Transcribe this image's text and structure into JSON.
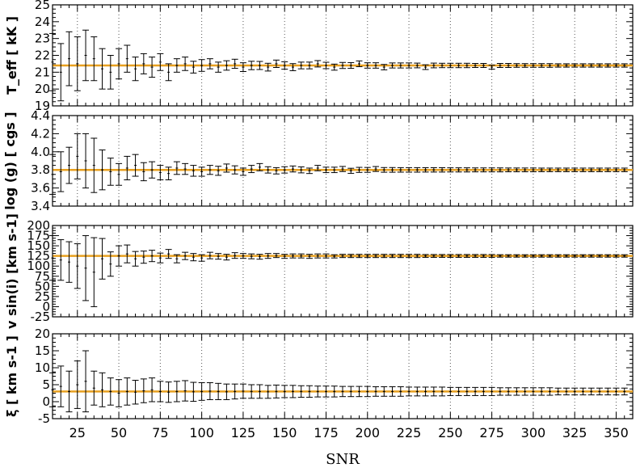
{
  "chart_data": {
    "type": "scatter",
    "xlabel": "SNR",
    "x_ticks": [
      25,
      50,
      75,
      100,
      125,
      150,
      175,
      200,
      225,
      250,
      275,
      300,
      325,
      350
    ],
    "xlim": [
      10,
      360
    ],
    "grid": "vertical dotted at major x ticks",
    "snr_points": [
      10,
      15,
      20,
      25,
      30,
      35,
      40,
      45,
      50,
      55,
      60,
      65,
      70,
      75,
      80,
      85,
      90,
      95,
      100,
      105,
      110,
      115,
      120,
      125,
      130,
      135,
      140,
      145,
      150,
      155,
      160,
      165,
      170,
      175,
      180,
      185,
      190,
      195,
      200,
      205,
      210,
      215,
      220,
      225,
      230,
      235,
      240,
      245,
      250,
      255,
      260,
      265,
      270,
      275,
      280,
      285,
      290,
      295,
      300,
      305,
      310,
      315,
      320,
      325,
      330,
      335,
      340,
      345,
      350,
      355
    ],
    "panels": [
      {
        "ylabel": "T_eff [ kK ]",
        "ylim": [
          19,
          25
        ],
        "y_ticks": [
          19,
          20,
          21,
          22,
          23,
          24,
          25
        ],
        "true_value": 21.4,
        "values": [
          21.6,
          21.0,
          21.8,
          21.5,
          22.0,
          21.8,
          21.2,
          21.0,
          21.5,
          21.8,
          21.2,
          21.5,
          21.3,
          21.6,
          21.0,
          21.4,
          21.5,
          21.3,
          21.4,
          21.5,
          21.3,
          21.4,
          21.5,
          21.3,
          21.4,
          21.4,
          21.3,
          21.5,
          21.4,
          21.3,
          21.4,
          21.4,
          21.5,
          21.4,
          21.3,
          21.4,
          21.4,
          21.5,
          21.4,
          21.4,
          21.3,
          21.4,
          21.4,
          21.4,
          21.4,
          21.3,
          21.4,
          21.4,
          21.4,
          21.4,
          21.4,
          21.4,
          21.4,
          21.3,
          21.4,
          21.4,
          21.4,
          21.4,
          21.4,
          21.4,
          21.4,
          21.4,
          21.4,
          21.4,
          21.4,
          21.4,
          21.4,
          21.4,
          21.4,
          21.4
        ],
        "errors": [
          1.7,
          1.7,
          1.6,
          1.6,
          1.5,
          1.3,
          1.2,
          1.0,
          0.9,
          0.8,
          0.7,
          0.6,
          0.6,
          0.5,
          0.5,
          0.4,
          0.4,
          0.35,
          0.35,
          0.3,
          0.3,
          0.28,
          0.27,
          0.26,
          0.25,
          0.24,
          0.23,
          0.22,
          0.22,
          0.21,
          0.2,
          0.2,
          0.19,
          0.19,
          0.18,
          0.18,
          0.17,
          0.17,
          0.16,
          0.16,
          0.16,
          0.15,
          0.15,
          0.15,
          0.14,
          0.14,
          0.14,
          0.13,
          0.13,
          0.13,
          0.13,
          0.12,
          0.12,
          0.12,
          0.12,
          0.12,
          0.11,
          0.11,
          0.11,
          0.11,
          0.11,
          0.1,
          0.1,
          0.1,
          0.1,
          0.1,
          0.1,
          0.1,
          0.1,
          0.1
        ]
      },
      {
        "ylabel": "log (g) [ cgs ]",
        "ylim": [
          3.4,
          4.4
        ],
        "y_ticks": [
          3.4,
          3.6,
          3.8,
          4.0,
          4.2,
          4.4
        ],
        "true_value": 3.8,
        "values": [
          3.75,
          3.78,
          3.85,
          3.95,
          3.9,
          3.85,
          3.8,
          3.78,
          3.75,
          3.82,
          3.85,
          3.78,
          3.8,
          3.77,
          3.76,
          3.82,
          3.81,
          3.79,
          3.78,
          3.8,
          3.79,
          3.82,
          3.8,
          3.78,
          3.81,
          3.83,
          3.8,
          3.79,
          3.8,
          3.81,
          3.8,
          3.79,
          3.82,
          3.8,
          3.8,
          3.81,
          3.79,
          3.8,
          3.8,
          3.81,
          3.8,
          3.8,
          3.8,
          3.8,
          3.8,
          3.8,
          3.8,
          3.8,
          3.8,
          3.8,
          3.8,
          3.8,
          3.8,
          3.8,
          3.8,
          3.8,
          3.8,
          3.8,
          3.8,
          3.8,
          3.8,
          3.8,
          3.8,
          3.8,
          3.8,
          3.8,
          3.8,
          3.8,
          3.8,
          3.8
        ],
        "errors": [
          0.22,
          0.22,
          0.2,
          0.25,
          0.3,
          0.3,
          0.22,
          0.15,
          0.12,
          0.13,
          0.12,
          0.1,
          0.09,
          0.08,
          0.07,
          0.07,
          0.06,
          0.06,
          0.05,
          0.05,
          0.05,
          0.045,
          0.045,
          0.04,
          0.04,
          0.04,
          0.035,
          0.035,
          0.035,
          0.033,
          0.033,
          0.03,
          0.03,
          0.03,
          0.03,
          0.028,
          0.028,
          0.028,
          0.027,
          0.027,
          0.026,
          0.026,
          0.025,
          0.025,
          0.025,
          0.024,
          0.024,
          0.024,
          0.023,
          0.023,
          0.023,
          0.022,
          0.022,
          0.022,
          0.022,
          0.021,
          0.021,
          0.021,
          0.021,
          0.02,
          0.02,
          0.02,
          0.02,
          0.02,
          0.02,
          0.02,
          0.02,
          0.02,
          0.02,
          0.02
        ]
      },
      {
        "ylabel": "v sin(i) [km s-1]",
        "ylim": [
          -25,
          200
        ],
        "y_ticks": [
          -25,
          0,
          25,
          50,
          75,
          100,
          125,
          150,
          175,
          200
        ],
        "true_value": 125,
        "values": [
          120,
          115,
          110,
          100,
          95,
          85,
          118,
          105,
          125,
          130,
          118,
          122,
          125,
          120,
          130,
          118,
          125,
          122,
          120,
          126,
          124,
          122,
          126,
          125,
          124,
          123,
          125,
          126,
          124,
          125,
          125,
          124,
          125,
          125,
          124,
          125,
          125,
          125,
          125,
          125,
          125,
          125,
          125,
          125,
          125,
          125,
          125,
          125,
          125,
          125,
          125,
          125,
          125,
          125,
          125,
          125,
          125,
          125,
          125,
          125,
          125,
          125,
          125,
          125,
          125,
          125,
          125,
          125,
          125,
          125
        ],
        "errors": [
          55,
          50,
          50,
          55,
          80,
          85,
          50,
          30,
          25,
          22,
          18,
          15,
          14,
          12,
          11,
          10,
          9,
          9,
          8,
          8,
          7,
          7,
          7,
          6,
          6,
          6,
          6,
          5,
          5,
          5,
          5,
          5,
          5,
          5,
          4,
          4,
          4,
          4,
          4,
          4,
          4,
          4,
          4,
          4,
          4,
          3.5,
          3.5,
          3.5,
          3.5,
          3.5,
          3.5,
          3.5,
          3.5,
          3.5,
          3,
          3,
          3,
          3,
          3,
          3,
          3,
          3,
          3,
          3,
          3,
          3,
          3,
          3,
          3,
          3
        ]
      },
      {
        "ylabel": "ξ [ km s-1 ]",
        "ylim": [
          -5,
          20
        ],
        "y_ticks": [
          -5,
          0,
          5,
          10,
          15,
          20
        ],
        "true_value": 3,
        "values": [
          3.5,
          4.5,
          3.0,
          5.0,
          6.0,
          4.0,
          3.5,
          3.0,
          2.5,
          3.0,
          2.8,
          3.2,
          3.5,
          3.0,
          2.8,
          3.0,
          3.2,
          2.9,
          3.0,
          3.1,
          3.0,
          2.9,
          3.0,
          3.1,
          3.0,
          3.0,
          2.9,
          3.0,
          3.0,
          3.0,
          3.0,
          3.0,
          3.0,
          3.0,
          3.0,
          3.0,
          3.0,
          3.0,
          3.0,
          3.0,
          3.0,
          3.0,
          3.0,
          3.0,
          3.0,
          3.0,
          3.0,
          3.0,
          3.0,
          3.0,
          3.0,
          3.0,
          3.0,
          3.0,
          3.0,
          3.0,
          3.0,
          3.0,
          3.0,
          3.0,
          3.0,
          3.0,
          3.0,
          3.0,
          3.0,
          3.0,
          3.0,
          3.0,
          3.0,
          3.0
        ],
        "errors": [
          5,
          6,
          6,
          7,
          9,
          5,
          5,
          4,
          4,
          4,
          3.5,
          3.5,
          3.5,
          3,
          3,
          3,
          3,
          2.8,
          2.6,
          2.5,
          2.4,
          2.3,
          2.2,
          2.1,
          2,
          2,
          1.9,
          1.9,
          1.8,
          1.8,
          1.7,
          1.7,
          1.6,
          1.6,
          1.6,
          1.5,
          1.5,
          1.5,
          1.5,
          1.4,
          1.4,
          1.4,
          1.4,
          1.3,
          1.3,
          1.3,
          1.3,
          1.3,
          1.2,
          1.2,
          1.2,
          1.2,
          1.2,
          1.2,
          1.1,
          1.1,
          1.1,
          1.1,
          1.1,
          1.1,
          1.1,
          1,
          1,
          1,
          1,
          1,
          1,
          1,
          1,
          1
        ]
      }
    ],
    "colors": {
      "true_line": "#e8a020",
      "error_bars": "#000000",
      "grid": "#555555"
    }
  }
}
